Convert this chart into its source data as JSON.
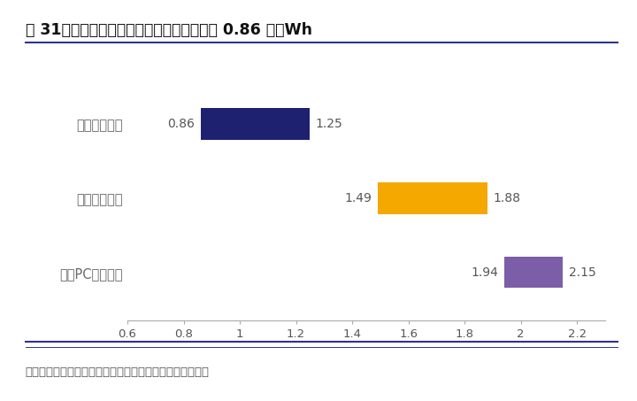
{
  "title": "图 31、近期中标项目的电池最低价已下探至 0.86 元／Wh",
  "footnote": "资料来源：北极星储能网，兴业证券经济与金融研究院整理",
  "categories": [
    "电池中标价格",
    "系统中标价格",
    "电站PC中标价格"
  ],
  "bar_starts": [
    0.86,
    1.49,
    1.94
  ],
  "bar_ends": [
    1.25,
    1.88,
    2.15
  ],
  "bar_colors": [
    "#1e2070",
    "#f5a800",
    "#7b5ea7"
  ],
  "xlim": [
    0.6,
    2.3
  ],
  "xticks": [
    0.6,
    0.8,
    1.0,
    1.2,
    1.4,
    1.6,
    1.8,
    2.0,
    2.2
  ],
  "xtick_labels": [
    "0.6",
    "0.8",
    "1",
    "1.2",
    "1.4",
    "1.6",
    "1.8",
    "2",
    "2.2"
  ],
  "background_color": "#ffffff",
  "title_fontsize": 12.5,
  "label_fontsize": 10.5,
  "tick_fontsize": 9.5,
  "footnote_fontsize": 9.5,
  "bar_height": 0.42,
  "title_color": "#111111",
  "label_color": "#666666",
  "footnote_color": "#555555",
  "value_label_color": "#555555",
  "value_label_fontsize": 10,
  "line_color": "#2e3192",
  "spine_color": "#aaaaaa"
}
